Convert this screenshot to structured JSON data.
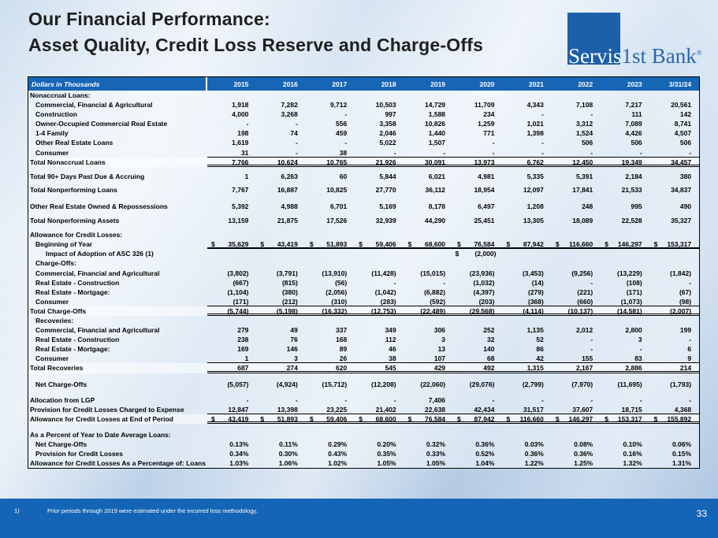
{
  "slide": {
    "title_line1": "Our Financial Performance:",
    "title_line2": "Asset Quality, Credit Loss Reserve and Charge-Offs",
    "footnote_marker": "1)",
    "footnote_text": "Prior periods through 2019 were estimated under the incurred loss methodology.",
    "page_number": "33"
  },
  "logo": {
    "part1": "Servis",
    "part2": "1st Bank",
    "registered": "®",
    "square_color": "#1d5fa9",
    "text_color": "#2b66ad"
  },
  "colors": {
    "header_blue": "#1765b5",
    "footer_blue": "#1465b5"
  },
  "table": {
    "header_label": "Dollars in Thousands",
    "columns": [
      "2015",
      "2016",
      "2017",
      "2018",
      "2019",
      "2020",
      "2021",
      "2022",
      "2023",
      "3/31/24"
    ],
    "rows": [
      {
        "type": "section",
        "indent": 0,
        "label": "Nonaccrual Loans:"
      },
      {
        "type": "data",
        "indent": 1,
        "label": "Commercial, Financial & Agricultural",
        "values": [
          "1,918",
          "7,282",
          "9,712",
          "10,503",
          "14,729",
          "11,709",
          "4,343",
          "7,108",
          "7,217",
          "20,561"
        ]
      },
      {
        "type": "data",
        "indent": 1,
        "label": "Construction",
        "values": [
          "4,000",
          "3,268",
          "-",
          "997",
          "1,588",
          "234",
          "-",
          "-",
          "111",
          "142"
        ]
      },
      {
        "type": "data",
        "indent": 1,
        "label": "Owner-Occupied Commercial Real Estate",
        "values": [
          "-",
          "-",
          "556",
          "3,358",
          "10,826",
          "1,259",
          "1,021",
          "3,312",
          "7,089",
          "8,741"
        ]
      },
      {
        "type": "data",
        "indent": 1,
        "label": "1-4 Family",
        "values": [
          "198",
          "74",
          "459",
          "2,046",
          "1,440",
          "771",
          "1,398",
          "1,524",
          "4,426",
          "4,507"
        ]
      },
      {
        "type": "data",
        "indent": 1,
        "label": "Other Real Estate Loans",
        "values": [
          "1,619",
          "-",
          "-",
          "5,022",
          "1,507",
          "-",
          "-",
          "506",
          "506",
          "506"
        ]
      },
      {
        "type": "data",
        "indent": 1,
        "label": "Consumer",
        "style": "ul",
        "values": [
          "31",
          "-",
          "38",
          "-",
          "-",
          "-",
          "-",
          "-",
          "-",
          "-"
        ]
      },
      {
        "type": "total",
        "indent": 0,
        "label": "Total Nonaccrual Loans",
        "style": "dbl",
        "values": [
          "7,766",
          "10,624",
          "10,765",
          "21,926",
          "30,091",
          "13,973",
          "6,762",
          "12,450",
          "19,349",
          "34,457"
        ]
      },
      {
        "type": "spacer",
        "h": 6
      },
      {
        "type": "data",
        "indent": 0,
        "label": "Total 90+ Days Past Due & Accruing",
        "values": [
          "1",
          "6,263",
          "60",
          "5,844",
          "6,021",
          "4,981",
          "5,335",
          "5,391",
          "2,184",
          "380"
        ]
      },
      {
        "type": "spacer",
        "h": 5
      },
      {
        "type": "data",
        "indent": 0,
        "label": "Total Nonperforming Loans",
        "values": [
          "7,767",
          "16,887",
          "10,825",
          "27,770",
          "36,112",
          "18,954",
          "12,097",
          "17,841",
          "21,533",
          "34,837"
        ]
      },
      {
        "type": "spacer",
        "h": 9
      },
      {
        "type": "data",
        "indent": 0,
        "label": "Other Real Estate Owned & Repossessions",
        "values": [
          "5,392",
          "4,988",
          "6,701",
          "5,169",
          "8,178",
          "6,497",
          "1,208",
          "248",
          "995",
          "490"
        ]
      },
      {
        "type": "spacer",
        "h": 6
      },
      {
        "type": "data",
        "indent": 0,
        "label": "Total Nonperforming Assets",
        "values": [
          "13,159",
          "21,875",
          "17,526",
          "32,939",
          "44,290",
          "25,451",
          "13,305",
          "18,089",
          "22,528",
          "35,327"
        ]
      },
      {
        "type": "spacer",
        "h": 6
      },
      {
        "type": "section",
        "indent": 0,
        "label": "Allowance for Credit Losses:"
      },
      {
        "type": "data",
        "indent": 1,
        "label": "Beginning of Year",
        "dollar": true,
        "style": "thick",
        "values": [
          "35,629",
          "43,419",
          "51,893",
          "59,406",
          "68,600",
          "76,584",
          "87,942",
          "116,660",
          "146,297",
          "153,317"
        ]
      },
      {
        "type": "data",
        "indent": 2,
        "label": "Impact of Adoption of ASC 326 (1)",
        "dollar": true,
        "values": [
          "",
          "",
          "",
          "",
          "",
          "(2,000)",
          "",
          "",
          "",
          ""
        ]
      },
      {
        "type": "section",
        "indent": 1,
        "label": "Charge-Offs:"
      },
      {
        "type": "data",
        "indent": 1,
        "label": "Commercial, Financial and Agricultural",
        "values": [
          "(3,802)",
          "(3,791)",
          "(13,910)",
          "(11,428)",
          "(15,015)",
          "(23,936)",
          "(3,453)",
          "(9,256)",
          "(13,229)",
          "(1,842)"
        ]
      },
      {
        "type": "data",
        "indent": 1,
        "label": "Real Estate - Construction",
        "values": [
          "(667)",
          "(815)",
          "(56)",
          "-",
          "-",
          "(1,032)",
          "(14)",
          "-",
          "(108)",
          "-"
        ]
      },
      {
        "type": "data",
        "indent": 1,
        "label": "Real Estate - Mortgage:",
        "values": [
          "(1,104)",
          "(380)",
          "(2,056)",
          "(1,042)",
          "(6,882)",
          "(4,397)",
          "(279)",
          "(221)",
          "(171)",
          "(67)"
        ]
      },
      {
        "type": "data",
        "indent": 1,
        "label": "Consumer",
        "style": "ul",
        "values": [
          "(171)",
          "(212)",
          "(310)",
          "(283)",
          "(592)",
          "(203)",
          "(368)",
          "(660)",
          "(1,073)",
          "(98)"
        ]
      },
      {
        "type": "total",
        "indent": 0,
        "label": "Total Charge-Offs",
        "style": "dbl",
        "values": [
          "(5,744)",
          "(5,198)",
          "(16,332)",
          "(12,753)",
          "(22,489)",
          "(29,568)",
          "(4,114)",
          "(10,137)",
          "(14,581)",
          "(2,007)"
        ]
      },
      {
        "type": "section",
        "indent": 1,
        "label": "Recoveries:"
      },
      {
        "type": "data",
        "indent": 1,
        "label": "Commercial, Financial and Agricultural",
        "values": [
          "279",
          "49",
          "337",
          "349",
          "306",
          "252",
          "1,135",
          "2,012",
          "2,800",
          "199"
        ]
      },
      {
        "type": "data",
        "indent": 1,
        "label": "Real Estate - Construction",
        "values": [
          "238",
          "76",
          "168",
          "112",
          "3",
          "32",
          "52",
          "-",
          "3",
          "-"
        ]
      },
      {
        "type": "data",
        "indent": 1,
        "label": "Real Estate - Mortgage:",
        "values": [
          "169",
          "146",
          "89",
          "46",
          "13",
          "140",
          "86",
          "-",
          "-",
          "6"
        ]
      },
      {
        "type": "data",
        "indent": 1,
        "label": "Consumer",
        "style": "ul",
        "values": [
          "1",
          "3",
          "26",
          "38",
          "107",
          "68",
          "42",
          "155",
          "83",
          "9"
        ]
      },
      {
        "type": "total",
        "indent": 0,
        "label": "Total Recoveries",
        "style": "dbl",
        "values": [
          "687",
          "274",
          "620",
          "545",
          "429",
          "492",
          "1,315",
          "2,167",
          "2,886",
          "214"
        ]
      },
      {
        "type": "spacer",
        "h": 8
      },
      {
        "type": "data",
        "indent": 1,
        "label": "Net Charge-Offs",
        "values": [
          "(5,057)",
          "(4,924)",
          "(15,712)",
          "(12,208)",
          "(22,060)",
          "(29,076)",
          "(2,799)",
          "(7,970)",
          "(11,695)",
          "(1,793)"
        ]
      },
      {
        "type": "spacer",
        "h": 8
      },
      {
        "type": "data",
        "indent": 0,
        "label": "Allocation from LGP",
        "values": [
          "-",
          "-",
          "-",
          "-",
          "7,406",
          "-",
          "-",
          "-",
          "-",
          "-"
        ]
      },
      {
        "type": "data",
        "indent": 0,
        "label": "Provision for Credit Losses Charged to Expense",
        "style": "ul",
        "values": [
          "12,847",
          "13,398",
          "23,225",
          "21,402",
          "22,638",
          "42,434",
          "31,517",
          "37,607",
          "18,715",
          "4,368"
        ]
      },
      {
        "type": "total",
        "indent": 0,
        "label": "Allowance for Credit Losses at End of Period",
        "dollar": true,
        "style": "dbl",
        "values": [
          "43,419",
          "51,893",
          "59,406",
          "68,600",
          "76,584",
          "87,942",
          "116,660",
          "146,297",
          "153,317",
          "155,892"
        ]
      },
      {
        "type": "spacer",
        "h": 8
      },
      {
        "type": "section",
        "indent": 0,
        "label": "As a Percent of Year to Date Average Loans:"
      },
      {
        "type": "data",
        "indent": 1,
        "label": "Net Charge-Offs",
        "values": [
          "0.13%",
          "0.11%",
          "0.29%",
          "0.20%",
          "0.32%",
          "0.36%",
          "0.03%",
          "0.08%",
          "0.10%",
          "0.06%"
        ]
      },
      {
        "type": "data",
        "indent": 1,
        "label": "Provision for Credit Losses",
        "values": [
          "0.34%",
          "0.30%",
          "0.43%",
          "0.35%",
          "0.33%",
          "0.52%",
          "0.36%",
          "0.36%",
          "0.16%",
          "0.15%"
        ]
      },
      {
        "type": "data",
        "indent": 0,
        "label": "Allowance for Credit Losses As a Percentage of: Loans",
        "values": [
          "1.03%",
          "1.06%",
          "1.02%",
          "1.05%",
          "1.05%",
          "1.04%",
          "1.22%",
          "1.25%",
          "1.32%",
          "1.31%"
        ]
      }
    ]
  }
}
